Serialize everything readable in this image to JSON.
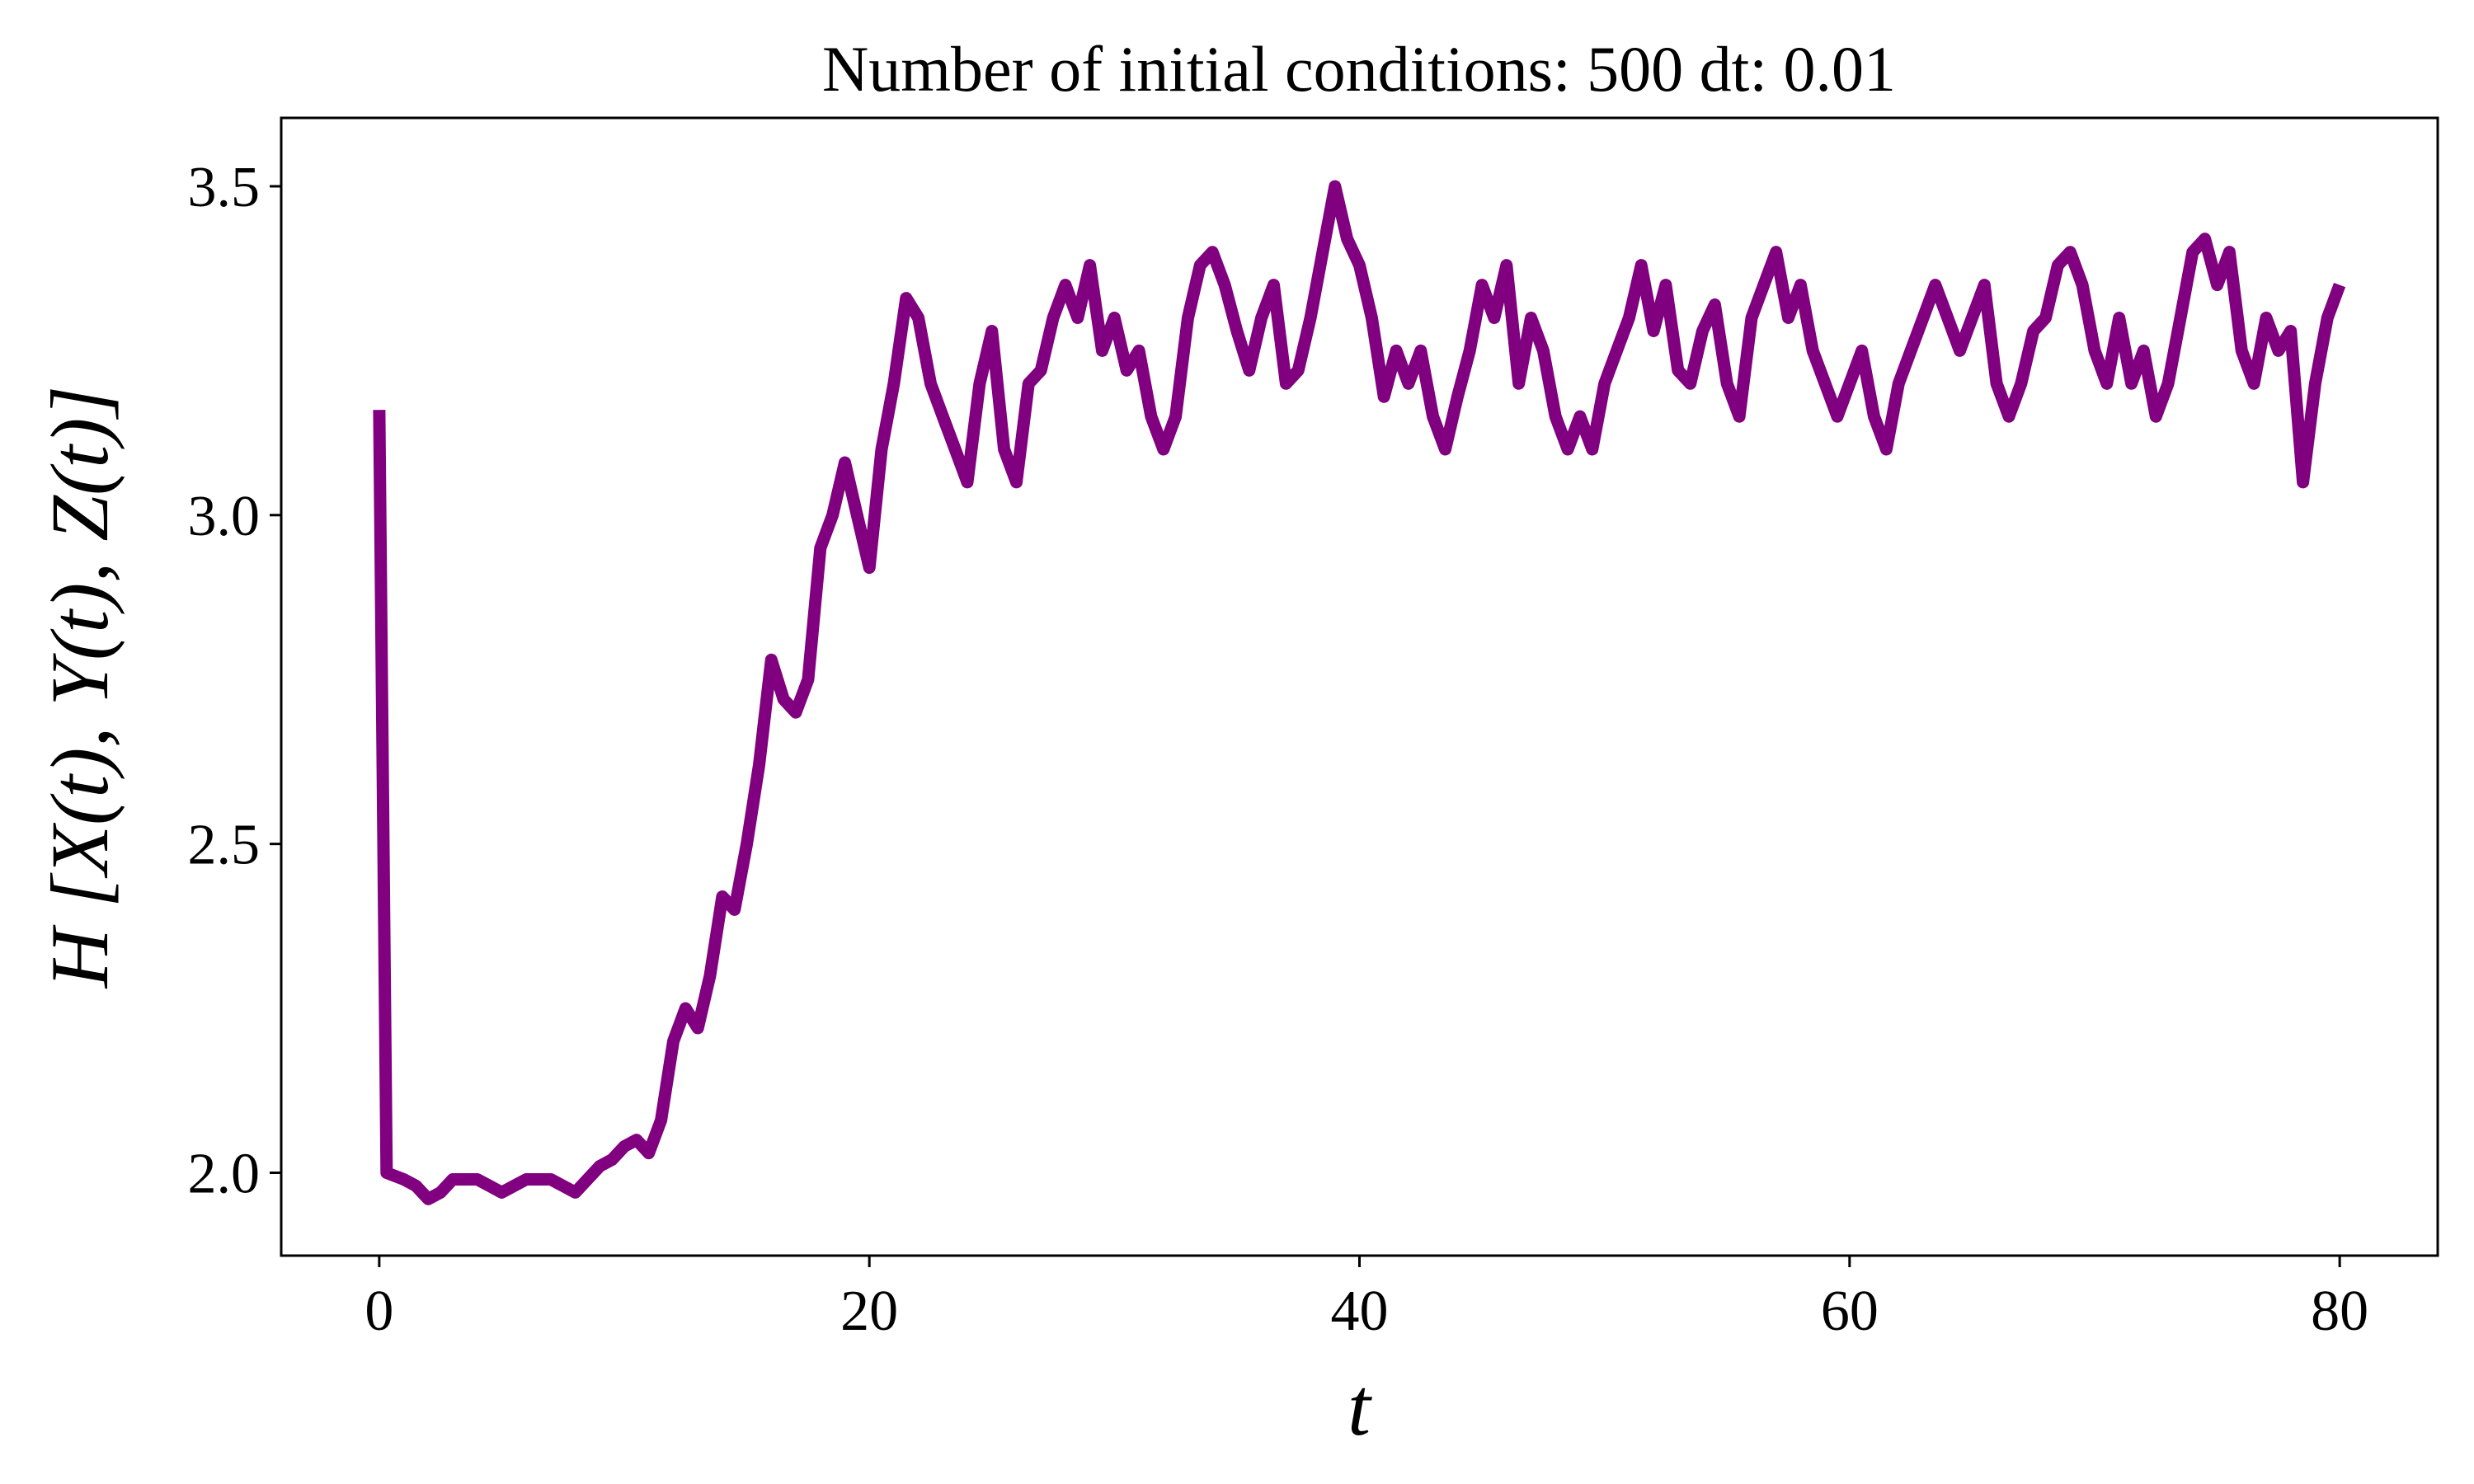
{
  "chart_data": {
    "type": "line",
    "title": "Number of initial conditions: 500 dt: 0.01",
    "x_label": "t",
    "y_label": "H [X(t), Y(t), Z(t)]",
    "x": [
      0,
      0.3,
      1,
      1.5,
      2,
      2.5,
      3,
      3.5,
      4,
      4.5,
      5,
      5.5,
      6,
      6.5,
      7,
      7.5,
      8,
      8.5,
      9,
      9.5,
      10,
      10.5,
      11,
      11.5,
      12,
      12.5,
      13,
      13.5,
      14,
      14.5,
      15,
      15.5,
      16,
      16.5,
      17,
      17.5,
      18,
      18.5,
      19,
      19.5,
      20,
      20.5,
      21,
      21.5,
      22,
      22.5,
      23,
      23.5,
      24,
      24.5,
      25,
      25.5,
      26,
      26.5,
      27,
      27.5,
      28,
      28.5,
      29,
      29.5,
      30,
      30.5,
      31,
      31.5,
      32,
      32.5,
      33,
      33.5,
      34,
      34.5,
      35,
      35.5,
      36,
      36.5,
      37,
      37.5,
      38,
      38.5,
      39,
      39.5,
      40,
      40.5,
      41,
      41.5,
      42,
      42.5,
      43,
      43.5,
      44,
      44.5,
      45,
      45.5,
      46,
      46.5,
      47,
      47.5,
      48,
      48.5,
      49,
      49.5,
      50,
      50.5,
      51,
      51.5,
      52,
      52.5,
      53,
      53.5,
      54,
      54.5,
      55,
      55.5,
      56,
      56.5,
      57,
      57.5,
      58,
      58.5,
      59,
      59.5,
      60,
      60.5,
      61,
      61.5,
      62,
      62.5,
      63,
      63.5,
      64,
      64.5,
      65,
      65.5,
      66,
      66.5,
      67,
      67.5,
      68,
      68.5,
      69,
      69.5,
      70,
      70.5,
      71,
      71.5,
      72,
      72.5,
      73,
      73.5,
      74,
      74.5,
      75,
      75.5,
      76,
      76.5,
      77,
      77.5,
      78,
      78.5,
      79,
      79.5,
      80
    ],
    "series": [
      {
        "name": "H",
        "color": "#800080",
        "values": [
          3.16,
          2.0,
          1.99,
          1.98,
          1.96,
          1.97,
          1.99,
          1.99,
          1.99,
          1.98,
          1.97,
          1.98,
          1.99,
          1.99,
          1.99,
          1.98,
          1.97,
          1.99,
          2.01,
          2.02,
          2.04,
          2.05,
          2.03,
          2.08,
          2.2,
          2.25,
          2.22,
          2.3,
          2.42,
          2.4,
          2.5,
          2.62,
          2.78,
          2.72,
          2.7,
          2.75,
          2.95,
          3.0,
          3.08,
          3.0,
          2.92,
          3.1,
          3.2,
          3.33,
          3.3,
          3.2,
          3.15,
          3.1,
          3.05,
          3.2,
          3.28,
          3.1,
          3.05,
          3.2,
          3.22,
          3.3,
          3.35,
          3.3,
          3.38,
          3.25,
          3.3,
          3.22,
          3.25,
          3.15,
          3.1,
          3.15,
          3.3,
          3.38,
          3.4,
          3.35,
          3.28,
          3.22,
          3.3,
          3.35,
          3.2,
          3.22,
          3.3,
          3.4,
          3.5,
          3.42,
          3.38,
          3.3,
          3.18,
          3.25,
          3.2,
          3.25,
          3.15,
          3.1,
          3.18,
          3.25,
          3.35,
          3.3,
          3.38,
          3.2,
          3.3,
          3.25,
          3.15,
          3.1,
          3.15,
          3.1,
          3.2,
          3.25,
          3.3,
          3.38,
          3.28,
          3.35,
          3.22,
          3.2,
          3.28,
          3.32,
          3.2,
          3.15,
          3.3,
          3.35,
          3.4,
          3.3,
          3.35,
          3.25,
          3.2,
          3.15,
          3.2,
          3.25,
          3.15,
          3.1,
          3.2,
          3.25,
          3.3,
          3.35,
          3.3,
          3.25,
          3.3,
          3.35,
          3.2,
          3.15,
          3.2,
          3.28,
          3.3,
          3.38,
          3.4,
          3.35,
          3.25,
          3.2,
          3.3,
          3.2,
          3.25,
          3.15,
          3.2,
          3.3,
          3.4,
          3.42,
          3.35,
          3.4,
          3.25,
          3.2,
          3.3,
          3.25,
          3.28,
          3.05,
          3.2,
          3.3,
          3.35
        ]
      }
    ],
    "xlim": [
      -4,
      84
    ],
    "ylim": [
      1.874,
      3.604
    ],
    "xticks": [
      0,
      20,
      40,
      60,
      80
    ],
    "yticks": [
      {
        "value": 2.0,
        "label": "2.0"
      },
      2.5,
      {
        "value": 3.0,
        "label": "3.0"
      },
      3.5
    ],
    "grid": false
  }
}
